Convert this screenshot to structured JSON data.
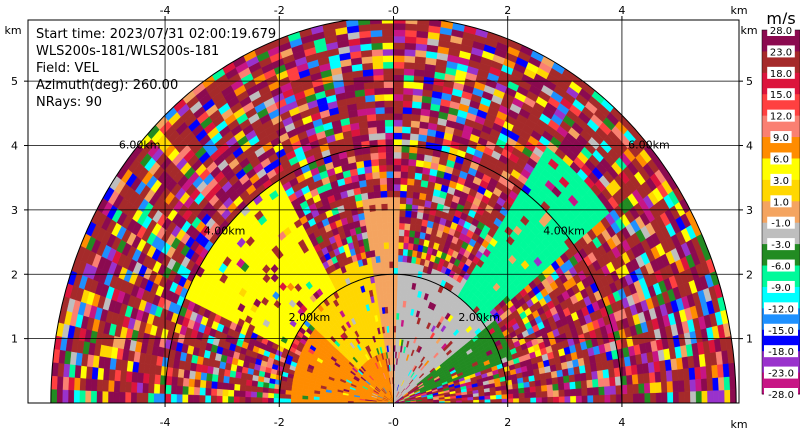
{
  "info": {
    "start_time": "Start time: 2023/07/31 02:00:19.679",
    "instrument": "WLS200s-181/WLS200s-181",
    "field": "Field: VEL",
    "azimuth": "Azimuth(deg): 260.00",
    "nrays": "NRays: 90"
  },
  "chart_data": {
    "type": "heatmap",
    "subtype": "RHI radar sector",
    "field": "VEL",
    "units": "m/s",
    "azimuth_deg": 260.0,
    "nrays": 90,
    "max_range_km": 6.0,
    "xlim": [
      -6.4,
      6.05
    ],
    "ylim": [
      0,
      5.95
    ],
    "x_axis_unit": "km",
    "y_axis_unit": "km",
    "x_ticks": [
      -4,
      -2,
      0,
      2,
      4
    ],
    "x_tick_labels": [
      "-4",
      "-2",
      "-0",
      "2",
      "4"
    ],
    "y_ticks": [
      1,
      2,
      3,
      4,
      5
    ],
    "y_tick_labels": [
      "1",
      "2",
      "3",
      "4",
      "5"
    ],
    "range_rings": [
      {
        "radius_km": 2,
        "label": "2.00km"
      },
      {
        "radius_km": 4,
        "label": "4.00km"
      },
      {
        "radius_km": 6,
        "label": "6.00km"
      }
    ],
    "colorbar": {
      "unit_label": "m/s",
      "bounds": [
        -28.0,
        -23.0,
        -18.0,
        -15.0,
        -12.0,
        -9.0,
        -6.0,
        -3.0,
        -1.0,
        1.0,
        3.0,
        6.0,
        9.0,
        12.0,
        15.0,
        18.0,
        23.0,
        28.0
      ],
      "labels": [
        "28.0",
        "23.0",
        "18.0",
        "15.0",
        "12.0",
        "9.0",
        "6.0",
        "3.0",
        "1.0",
        "-1.0",
        "-3.0",
        "-6.0",
        "-9.0",
        "-12.0",
        "-15.0",
        "-18.0",
        "-23.0",
        "-28.0"
      ],
      "colors": [
        "#8b0a50",
        "#a52a2a",
        "#dc143c",
        "#ff4040",
        "#fa8072",
        "#ff8c00",
        "#ffff00",
        "#ffd700",
        "#f4a460",
        "#bebebe",
        "#228b22",
        "#00fa9a",
        "#00ffff",
        "#1e90ff",
        "#0000ff",
        "#9932cc",
        "#c71585"
      ]
    },
    "regions": [
      {
        "desc": "near-range left",
        "angle_deg": [
          100,
          180
        ],
        "range_km": [
          0,
          1.8
        ],
        "value": 7.5
      },
      {
        "desc": "near-range left upper",
        "angle_deg": [
          95,
          140
        ],
        "range_km": [
          0.8,
          2.3
        ],
        "value": 2.0
      },
      {
        "desc": "near-range right",
        "angle_deg": [
          35,
          88
        ],
        "range_km": [
          0,
          2.2
        ],
        "value": -2.0
      },
      {
        "desc": "near-range right edge",
        "angle_deg": [
          18,
          35
        ],
        "range_km": [
          0.5,
          2.2
        ],
        "value": -4.5
      },
      {
        "desc": "vertical gray column",
        "angle_deg": [
          88,
          100
        ],
        "range_km": [
          0,
          3.2
        ],
        "value": 0.0
      },
      {
        "desc": "mid-range left",
        "angle_deg": [
          120,
          155
        ],
        "range_km": [
          2.0,
          4.0
        ],
        "value": 4.5
      },
      {
        "desc": "mid-range right streak",
        "angle_deg": [
          38,
          55
        ],
        "range_km": [
          2.0,
          4.8
        ],
        "value": -7.5
      }
    ]
  }
}
